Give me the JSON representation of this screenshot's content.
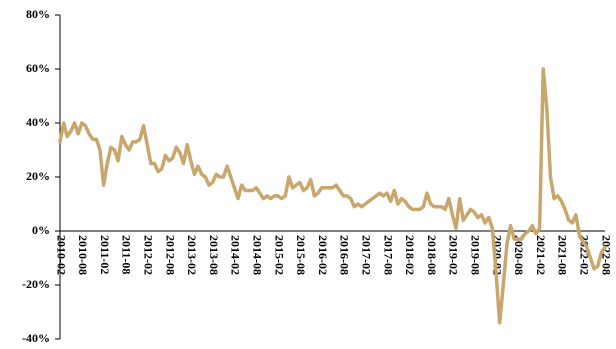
{
  "chart_data": {
    "type": "line",
    "categories": [
      "2010-02",
      null,
      null,
      null,
      null,
      null,
      "2010-08",
      null,
      null,
      null,
      null,
      null,
      "2011-02",
      null,
      null,
      null,
      null,
      null,
      "2011-08",
      null,
      null,
      null,
      null,
      null,
      "2012-02",
      null,
      null,
      null,
      null,
      null,
      "2012-08",
      null,
      null,
      null,
      null,
      null,
      "2013-02",
      null,
      null,
      null,
      null,
      null,
      "2013-08",
      null,
      null,
      null,
      null,
      null,
      "2014-02",
      null,
      null,
      null,
      null,
      null,
      "2014-08",
      null,
      null,
      null,
      null,
      null,
      "2015-02",
      null,
      null,
      null,
      null,
      null,
      "2015-08",
      null,
      null,
      null,
      null,
      null,
      "2016-02",
      null,
      null,
      null,
      null,
      null,
      "2016-08",
      null,
      null,
      null,
      null,
      null,
      "2017-02",
      null,
      null,
      null,
      null,
      null,
      "2017-08",
      null,
      null,
      null,
      null,
      null,
      "2018-02",
      null,
      null,
      null,
      null,
      null,
      "2018-08",
      null,
      null,
      null,
      null,
      null,
      "2019-02",
      null,
      null,
      null,
      null,
      null,
      "2019-08",
      null,
      null,
      null,
      null,
      null,
      "2020-02",
      null,
      null,
      null,
      null,
      null,
      "2020-08",
      null,
      null,
      null,
      null,
      null,
      "2021-02",
      null,
      null,
      null,
      null,
      null,
      "2021-08",
      null,
      null,
      null,
      null,
      null,
      "2022-02",
      null,
      null,
      null,
      null,
      null,
      "2022-08"
    ],
    "values": [
      33,
      40,
      35,
      37,
      40,
      36,
      40,
      39,
      36,
      34,
      34,
      30,
      17,
      25,
      31,
      30,
      26,
      35,
      32,
      30,
      33,
      33,
      34,
      39,
      32,
      25,
      25,
      22,
      23,
      28,
      26,
      27,
      31,
      29,
      25,
      32,
      26,
      21,
      24,
      21,
      20,
      17,
      18,
      21,
      20,
      20,
      24,
      20,
      16,
      12,
      17,
      15,
      15,
      15,
      16,
      14,
      12,
      13,
      12,
      13,
      13,
      12,
      13,
      20,
      16,
      17,
      18,
      15,
      16,
      19,
      13,
      14,
      16,
      16,
      16,
      16,
      17,
      15,
      13,
      13,
      12,
      9,
      10,
      9,
      10,
      11,
      12,
      13,
      14,
      13,
      14,
      11,
      15,
      10,
      12,
      11,
      9,
      8,
      8,
      8,
      9,
      14,
      10,
      9,
      9,
      9,
      8,
      12,
      6,
      1,
      12,
      4,
      6,
      8,
      7,
      5,
      6,
      3,
      5,
      1,
      -15,
      -34,
      -20,
      -5,
      2,
      -3,
      -3,
      -3,
      -1,
      0,
      2,
      -1,
      1,
      60,
      45,
      20,
      12,
      13,
      11,
      8,
      4,
      3,
      6,
      -2,
      -4,
      -6,
      -10,
      -14,
      -13,
      -8,
      -6
    ],
    "color": "#c9a66b",
    "ylim": [
      -40,
      80
    ],
    "yticks": [
      {
        "value": -40,
        "label": "-40%"
      },
      {
        "value": -20,
        "label": "-20%"
      },
      {
        "value": 0,
        "label": "0%"
      },
      {
        "value": 20,
        "label": "20%"
      },
      {
        "value": 40,
        "label": "40%"
      },
      {
        "value": 60,
        "label": "60%"
      },
      {
        "value": 80,
        "label": "80%"
      }
    ]
  }
}
